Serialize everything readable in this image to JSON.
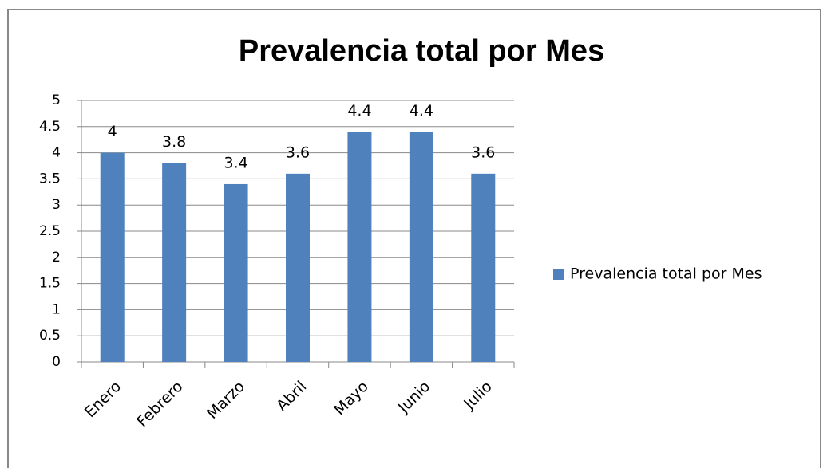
{
  "chart_data": {
    "type": "bar",
    "title": "Prevalencia total por Mes",
    "categories": [
      "Enero",
      "Febrero",
      "Marzo",
      "Abril",
      "Mayo",
      "Junio",
      "Julio"
    ],
    "series": [
      {
        "name": "Prevalencia total por Mes",
        "color": "#4f81bd",
        "values": [
          4,
          3.8,
          3.4,
          3.6,
          4.4,
          4.4,
          3.6
        ]
      }
    ],
    "ylim": [
      0,
      5
    ],
    "yticks": [
      0,
      0.5,
      1,
      1.5,
      2,
      2.5,
      3,
      3.5,
      4,
      4.5,
      5
    ],
    "grid": true,
    "legend": "right"
  }
}
